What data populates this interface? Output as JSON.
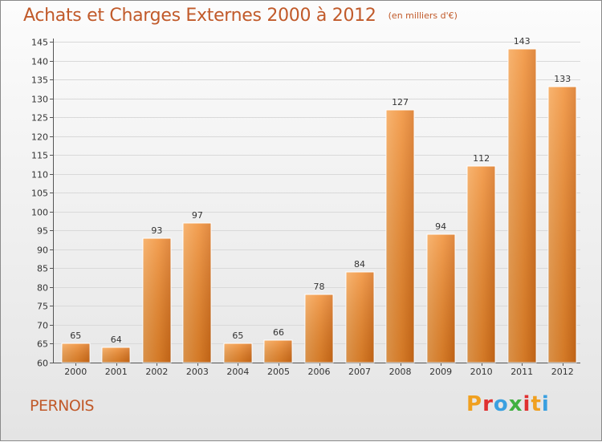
{
  "header": {
    "title": "Achats et Charges Externes 2000 à 2012",
    "subtitle": "(en milliers d'€)"
  },
  "footer": {
    "town": "PERNOIS",
    "logo_text": "Proxiti",
    "logo_colors": [
      "#f0a020",
      "#e03030",
      "#3aa0e0",
      "#40b040",
      "#e03030",
      "#f0a020",
      "#3aa0e0"
    ]
  },
  "chart_data": {
    "type": "bar",
    "title": "Achats et Charges Externes 2000 à 2012",
    "subtitle": "(en milliers d'€)",
    "categories": [
      "2000",
      "2001",
      "2002",
      "2003",
      "2004",
      "2005",
      "2006",
      "2007",
      "2008",
      "2009",
      "2010",
      "2011",
      "2012"
    ],
    "values": [
      65,
      64,
      93,
      97,
      65,
      66,
      78,
      84,
      127,
      94,
      112,
      143,
      133
    ],
    "ylim": [
      60,
      145
    ],
    "yticks": [
      60,
      65,
      70,
      75,
      80,
      85,
      90,
      95,
      100,
      105,
      110,
      115,
      120,
      125,
      130,
      135,
      140,
      145
    ],
    "xlabel": "",
    "ylabel": "",
    "grid": true,
    "bar_color": "#f28a2e",
    "bar_color_dark": "#d8701a"
  }
}
